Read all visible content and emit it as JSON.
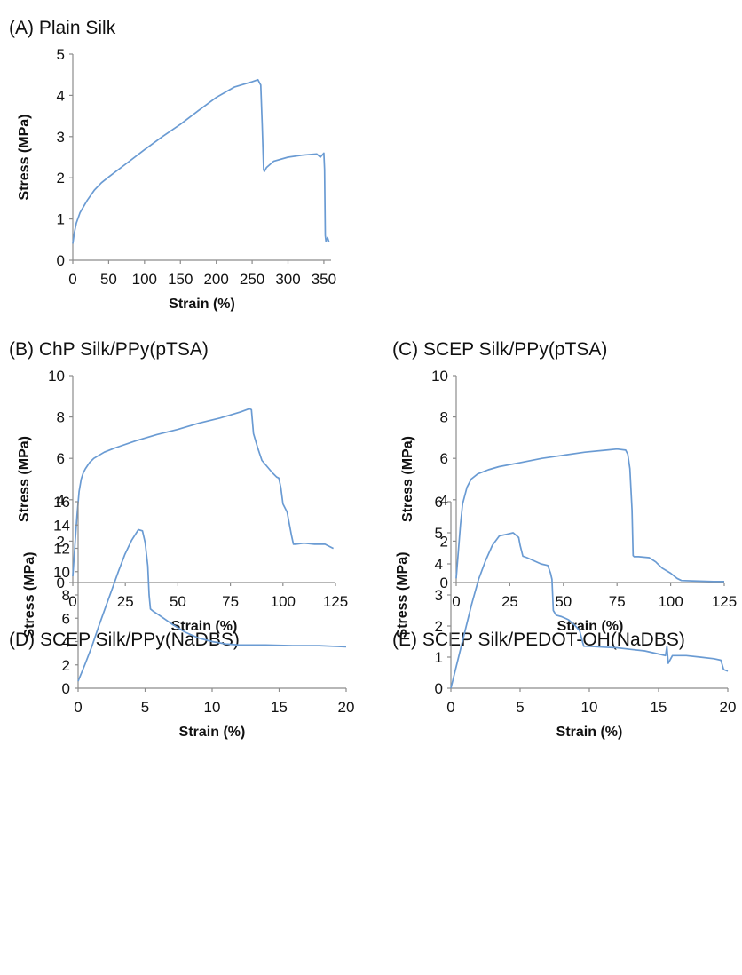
{
  "chart_data": [
    {
      "type": "line",
      "title": "(A) Plain Silk",
      "xlabel": "Strain (%)",
      "ylabel": "Stress (MPa)",
      "xlim": [
        0,
        360
      ],
      "ylim": [
        0,
        5
      ],
      "xticks": [
        "0",
        "50",
        "100",
        "150",
        "200",
        "250",
        "300",
        "350"
      ],
      "yticks": [
        "0",
        "1",
        "2",
        "3",
        "4",
        "5"
      ],
      "color": "#6a9bd3",
      "series": [
        {
          "x": [
            0,
            2,
            5,
            10,
            20,
            30,
            40,
            50,
            75,
            100,
            125,
            150,
            175,
            200,
            225,
            250,
            258,
            262,
            264,
            266,
            267,
            270,
            280,
            300,
            320,
            340,
            345,
            350,
            351,
            352,
            353,
            355,
            357
          ],
          "y": [
            0.4,
            0.65,
            0.9,
            1.15,
            1.45,
            1.7,
            1.88,
            2.02,
            2.35,
            2.68,
            3.0,
            3.3,
            3.63,
            3.95,
            4.2,
            4.33,
            4.38,
            4.25,
            3.3,
            2.2,
            2.15,
            2.25,
            2.4,
            2.5,
            2.55,
            2.58,
            2.5,
            2.6,
            2.2,
            0.6,
            0.45,
            0.55,
            0.45
          ]
        }
      ]
    },
    {
      "type": "line",
      "title": "(B) ChP Silk/PPy(pTSA)",
      "xlabel": "Strain (%)",
      "ylabel": "Stress (MPa)",
      "xlim": [
        0,
        125
      ],
      "ylim": [
        0,
        10
      ],
      "xticks": [
        "0",
        "25",
        "50",
        "75",
        "100",
        "125"
      ],
      "yticks": [
        "0",
        "2",
        "4",
        "6",
        "8",
        "10"
      ],
      "color": "#6a9bd3",
      "series": [
        {
          "x": [
            0,
            1,
            2,
            3,
            4,
            5,
            6,
            8,
            10,
            15,
            20,
            30,
            40,
            50,
            60,
            70,
            80,
            84,
            85,
            86,
            88,
            90,
            95,
            97,
            98,
            99,
            100,
            102,
            104,
            105,
            106,
            110,
            115,
            120,
            124
          ],
          "y": [
            0.3,
            1.8,
            3.2,
            4.4,
            5.0,
            5.3,
            5.5,
            5.8,
            6.0,
            6.3,
            6.5,
            6.85,
            7.15,
            7.4,
            7.7,
            7.95,
            8.25,
            8.4,
            8.35,
            7.2,
            6.5,
            5.9,
            5.3,
            5.1,
            5.05,
            4.6,
            3.8,
            3.4,
            2.3,
            1.85,
            1.85,
            1.9,
            1.85,
            1.85,
            1.65
          ]
        }
      ]
    },
    {
      "type": "line",
      "title": "(C) SCEP Silk/PPy(pTSA)",
      "xlabel": "Strain (%)",
      "ylabel": "Stress (MPa)",
      "xlim": [
        0,
        125
      ],
      "ylim": [
        0,
        10
      ],
      "xticks": [
        "0",
        "25",
        "50",
        "75",
        "100",
        "125"
      ],
      "yticks": [
        "0",
        "2",
        "4",
        "6",
        "8",
        "10"
      ],
      "color": "#6a9bd3",
      "series": [
        {
          "x": [
            0,
            1,
            2,
            3,
            5,
            7,
            10,
            15,
            20,
            30,
            40,
            50,
            60,
            70,
            75,
            79,
            80,
            81,
            82,
            82.5,
            83,
            85,
            90,
            93,
            96,
            100,
            103,
            105,
            110,
            120,
            125
          ],
          "y": [
            0.2,
            1.5,
            2.8,
            3.8,
            4.6,
            5.0,
            5.25,
            5.45,
            5.6,
            5.8,
            6.0,
            6.15,
            6.3,
            6.4,
            6.45,
            6.4,
            6.2,
            5.5,
            3.5,
            1.3,
            1.25,
            1.25,
            1.2,
            1.0,
            0.7,
            0.45,
            0.2,
            0.1,
            0.08,
            0.05,
            0.05
          ]
        }
      ]
    },
    {
      "type": "line",
      "title": "(D) SCEP Silk/PPy(NaDBS)",
      "xlabel": "Strain (%)",
      "ylabel": "Stress (MPa)",
      "xlim": [
        0,
        20
      ],
      "ylim": [
        0,
        16
      ],
      "xticks": [
        "0",
        "5",
        "10",
        "15",
        "20"
      ],
      "yticks": [
        "0",
        "2",
        "4",
        "6",
        "8",
        "10",
        "12",
        "14",
        "16"
      ],
      "color": "#6a9bd3",
      "series": [
        {
          "x": [
            0,
            0.5,
            1,
            1.5,
            2,
            2.5,
            3,
            3.5,
            4,
            4.5,
            4.8,
            5.0,
            5.2,
            5.3,
            5.4,
            5.6,
            6,
            6.5,
            7,
            8,
            9,
            10,
            11,
            12,
            14,
            16,
            18,
            19,
            20
          ],
          "y": [
            0.6,
            2.0,
            3.5,
            5.2,
            6.8,
            8.4,
            10.0,
            11.5,
            12.7,
            13.6,
            13.5,
            12.5,
            10.5,
            8.0,
            6.8,
            6.6,
            6.3,
            5.9,
            5.5,
            4.8,
            4.3,
            4.0,
            3.8,
            3.7,
            3.7,
            3.65,
            3.65,
            3.6,
            3.55
          ]
        }
      ]
    },
    {
      "type": "line",
      "title": "(E) SCEP Silk/PEDOT-OH(NaDBS)",
      "xlabel": "Strain (%)",
      "ylabel": "Stress (MPa)",
      "xlim": [
        0,
        20
      ],
      "ylim": [
        0,
        6
      ],
      "xticks": [
        "0",
        "5",
        "10",
        "15",
        "20"
      ],
      "yticks": [
        "0",
        "1",
        "2",
        "3",
        "4",
        "5",
        "6"
      ],
      "color": "#6a9bd3",
      "series": [
        {
          "x": [
            0,
            0.5,
            1,
            1.5,
            2,
            2.5,
            3,
            3.5,
            4,
            4.5,
            4.9,
            5.0,
            5.2,
            5.5,
            6,
            6.5,
            7,
            7.2,
            7.3,
            7.4,
            7.6,
            8,
            8.5,
            9,
            9.3,
            9.5,
            9.6,
            10,
            11,
            12,
            13,
            14,
            15,
            15.5,
            15.6,
            15.7,
            16,
            17,
            18,
            19,
            19.5,
            19.7,
            20
          ],
          "y": [
            0,
            0.9,
            1.8,
            2.7,
            3.5,
            4.1,
            4.6,
            4.9,
            4.95,
            5.0,
            4.85,
            4.6,
            4.25,
            4.2,
            4.1,
            4.0,
            3.95,
            3.7,
            3.5,
            2.5,
            2.35,
            2.3,
            2.2,
            2.0,
            1.85,
            1.5,
            1.35,
            1.35,
            1.32,
            1.3,
            1.25,
            1.2,
            1.1,
            1.05,
            1.35,
            0.8,
            1.05,
            1.05,
            1.0,
            0.95,
            0.9,
            0.6,
            0.55
          ]
        }
      ]
    }
  ]
}
